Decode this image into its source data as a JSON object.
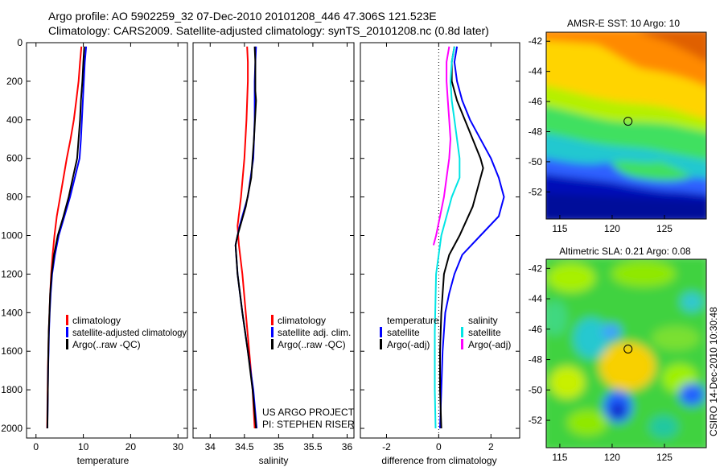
{
  "header": {
    "line1": "Argo profile: AO 5902259_32 07-Dec-2010 20101208_446 47.306S 121.523E",
    "line2": "Climatology: CARS2009. Satellite-adjusted climatology: synTS_20101208.nc (0.8d later)"
  },
  "side_label": "CSIRO 14-Dec-2010 10:30:48",
  "colors": {
    "climatology": "#ff0000",
    "satellite": "#0000ff",
    "argo": "#000000",
    "sal_satellite": "#00e5e5",
    "sal_argo": "#ff00ff"
  },
  "chart_data": [
    {
      "type": "line",
      "xlabel": "temperature",
      "xticks": [
        "0",
        "10",
        "20",
        "30"
      ],
      "xlim": [
        -2,
        32
      ],
      "ylim": [
        2050,
        0
      ],
      "yticks": [
        "0",
        "200",
        "400",
        "600",
        "800",
        "1000",
        "1200",
        "1400",
        "1600",
        "1800",
        "2000"
      ],
      "legend": [
        "climatology",
        "satellite-adjusted climatology",
        "Argo(..raw -QC)"
      ],
      "series": [
        {
          "name": "climatology",
          "color": "#ff0000",
          "points": [
            [
              9.6,
              20
            ],
            [
              9.3,
              100
            ],
            [
              9.0,
              200
            ],
            [
              8.5,
              300
            ],
            [
              8.0,
              400
            ],
            [
              7.3,
              500
            ],
            [
              6.5,
              600
            ],
            [
              5.8,
              700
            ],
            [
              5.1,
              800
            ],
            [
              4.4,
              900
            ],
            [
              3.9,
              1000
            ],
            [
              3.5,
              1100
            ],
            [
              3.2,
              1200
            ],
            [
              3.0,
              1300
            ],
            [
              2.85,
              1400
            ],
            [
              2.7,
              1500
            ],
            [
              2.6,
              1600
            ],
            [
              2.5,
              1700
            ],
            [
              2.45,
              1800
            ],
            [
              2.4,
              1900
            ],
            [
              2.35,
              2000
            ]
          ]
        },
        {
          "name": "satellite-adjusted climatology",
          "color": "#0000ff",
          "points": [
            [
              10.6,
              20
            ],
            [
              10.3,
              100
            ],
            [
              10.1,
              200
            ],
            [
              9.9,
              300
            ],
            [
              9.7,
              400
            ],
            [
              9.5,
              500
            ],
            [
              9.2,
              600
            ],
            [
              8.2,
              700
            ],
            [
              7.2,
              800
            ],
            [
              6.0,
              900
            ],
            [
              4.8,
              1000
            ],
            [
              4.0,
              1100
            ],
            [
              3.4,
              1200
            ],
            [
              3.1,
              1300
            ],
            [
              2.9,
              1400
            ],
            [
              2.75,
              1500
            ],
            [
              2.65,
              1600
            ],
            [
              2.55,
              1700
            ],
            [
              2.5,
              1800
            ],
            [
              2.45,
              1900
            ],
            [
              2.4,
              2000
            ]
          ]
        },
        {
          "name": "Argo(..raw -QC)",
          "color": "#000000",
          "points": [
            [
              10.2,
              20
            ],
            [
              10.0,
              100
            ],
            [
              9.8,
              200
            ],
            [
              9.5,
              300
            ],
            [
              9.3,
              400
            ],
            [
              9.0,
              500
            ],
            [
              8.7,
              600
            ],
            [
              7.8,
              700
            ],
            [
              6.9,
              800
            ],
            [
              5.8,
              900
            ],
            [
              4.6,
              1000
            ],
            [
              3.8,
              1100
            ],
            [
              3.3,
              1200
            ],
            [
              3.0,
              1300
            ],
            [
              2.85,
              1400
            ],
            [
              2.7,
              1500
            ],
            [
              2.6,
              1600
            ],
            [
              2.55,
              1700
            ],
            [
              2.5,
              1800
            ],
            [
              2.45,
              1900
            ],
            [
              2.4,
              2000
            ]
          ]
        }
      ]
    },
    {
      "type": "line",
      "xlabel": "salinity",
      "xticks": [
        "34",
        "34.5",
        "35",
        "35.5",
        "36"
      ],
      "xlim": [
        33.75,
        36.1
      ],
      "ylim": [
        2050,
        0
      ],
      "legend": [
        "climatology",
        "satellite adj. clim.",
        "Argo(..raw -QC)"
      ],
      "annotation": [
        "US ARGO PROJECT",
        "PI: STEPHEN RISER"
      ],
      "series": [
        {
          "name": "climatology",
          "color": "#ff0000",
          "points": [
            [
              34.54,
              20
            ],
            [
              34.55,
              100
            ],
            [
              34.55,
              200
            ],
            [
              34.53,
              400
            ],
            [
              34.5,
              600
            ],
            [
              34.45,
              800
            ],
            [
              34.4,
              950
            ],
            [
              34.42,
              1050
            ],
            [
              34.47,
              1200
            ],
            [
              34.52,
              1400
            ],
            [
              34.57,
              1600
            ],
            [
              34.62,
              1800
            ],
            [
              34.65,
              2000
            ]
          ]
        },
        {
          "name": "satellite adj. clim.",
          "color": "#0000ff",
          "points": [
            [
              34.67,
              20
            ],
            [
              34.66,
              100
            ],
            [
              34.65,
              200
            ],
            [
              34.65,
              400
            ],
            [
              34.63,
              600
            ],
            [
              34.55,
              800
            ],
            [
              34.43,
              950
            ],
            [
              34.37,
              1050
            ],
            [
              34.4,
              1200
            ],
            [
              34.47,
              1400
            ],
            [
              34.55,
              1600
            ],
            [
              34.63,
              1800
            ],
            [
              34.68,
              2000
            ]
          ]
        },
        {
          "name": "Argo(..raw -QC)",
          "color": "#000000",
          "points": [
            [
              34.65,
              20
            ],
            [
              34.66,
              100
            ],
            [
              34.66,
              250
            ],
            [
              34.67,
              300
            ],
            [
              34.64,
              500
            ],
            [
              34.6,
              700
            ],
            [
              34.52,
              850
            ],
            [
              34.4,
              1000
            ],
            [
              34.37,
              1050
            ],
            [
              34.4,
              1200
            ],
            [
              34.47,
              1400
            ],
            [
              34.55,
              1600
            ],
            [
              34.62,
              1800
            ],
            [
              34.67,
              2000
            ]
          ]
        }
      ]
    },
    {
      "type": "line",
      "xlabel": "difference from climatology",
      "xticks": [
        "-2",
        "0",
        "2"
      ],
      "xlim": [
        -3.0,
        3.1
      ],
      "ylim": [
        2050,
        0
      ],
      "legend_title": [
        "temperature",
        "salinity"
      ],
      "legend": [
        "satellite",
        "Argo(-adj)",
        "satellite",
        "Argo(-adj)"
      ],
      "series": [
        {
          "name": "temperature satellite",
          "color": "#0000ff",
          "points": [
            [
              0.7,
              20
            ],
            [
              0.6,
              100
            ],
            [
              0.7,
              200
            ],
            [
              0.9,
              300
            ],
            [
              1.2,
              400
            ],
            [
              1.6,
              500
            ],
            [
              2.0,
              600
            ],
            [
              2.3,
              700
            ],
            [
              2.5,
              800
            ],
            [
              2.3,
              900
            ],
            [
              1.6,
              1000
            ],
            [
              0.9,
              1100
            ],
            [
              0.6,
              1200
            ],
            [
              0.4,
              1300
            ],
            [
              0.25,
              1400
            ],
            [
              0.15,
              1600
            ],
            [
              0.1,
              1800
            ],
            [
              0.05,
              2000
            ]
          ]
        },
        {
          "name": "temperature Argo(-adj)",
          "color": "#000000",
          "points": [
            [
              0.6,
              20
            ],
            [
              0.5,
              100
            ],
            [
              0.5,
              200
            ],
            [
              0.7,
              300
            ],
            [
              1.0,
              400
            ],
            [
              1.3,
              500
            ],
            [
              1.6,
              600
            ],
            [
              1.7,
              650
            ],
            [
              1.5,
              750
            ],
            [
              1.3,
              850
            ],
            [
              0.8,
              1000
            ],
            [
              0.4,
              1100
            ],
            [
              0.2,
              1200
            ],
            [
              0.1,
              1400
            ],
            [
              0.05,
              1600
            ],
            [
              0.05,
              1800
            ],
            [
              0.1,
              2000
            ]
          ]
        },
        {
          "name": "salinity satellite",
          "color": "#00e5e5",
          "points": [
            [
              0.6,
              20
            ],
            [
              0.5,
              100
            ],
            [
              0.45,
              200
            ],
            [
              0.5,
              300
            ],
            [
              0.6,
              400
            ],
            [
              0.7,
              500
            ],
            [
              0.8,
              600
            ],
            [
              0.8,
              700
            ],
            [
              0.5,
              800
            ],
            [
              0.3,
              900
            ],
            [
              0.1,
              1000
            ],
            [
              -0.1,
              1200
            ],
            [
              -0.15,
              1500
            ],
            [
              -0.15,
              1800
            ],
            [
              -0.12,
              2000
            ]
          ]
        },
        {
          "name": "salinity Argo(-adj)",
          "color": "#ff00ff",
          "points": [
            [
              0.4,
              20
            ],
            [
              0.3,
              100
            ],
            [
              0.3,
              200
            ],
            [
              0.35,
              300
            ],
            [
              0.4,
              400
            ],
            [
              0.45,
              500
            ],
            [
              0.4,
              600
            ],
            [
              0.3,
              700
            ],
            [
              0.2,
              800
            ],
            [
              0.05,
              900
            ],
            [
              -0.1,
              1000
            ],
            [
              -0.2,
              1050
            ]
          ]
        }
      ]
    },
    {
      "type": "heatmap",
      "title": "AMSR-E SST: 10 Argo: 10",
      "xticks": [
        "115",
        "120",
        "125"
      ],
      "yticks": [
        "-42",
        "-44",
        "-46",
        "-48",
        "-50",
        "-52"
      ],
      "xlim": [
        113.7,
        129
      ],
      "ylim": [
        -41.4,
        -53.8
      ],
      "marker": [
        121.52,
        -47.31
      ]
    },
    {
      "type": "heatmap",
      "title": "Altimetric SLA: 0.21 Argo: 0.08",
      "xticks": [
        "115",
        "120",
        "125"
      ],
      "yticks": [
        "-42",
        "-44",
        "-46",
        "-48",
        "-50",
        "-52"
      ],
      "xlim": [
        113.7,
        129
      ],
      "ylim": [
        -41.4,
        -53.8
      ],
      "marker": [
        121.52,
        -47.31
      ]
    }
  ]
}
